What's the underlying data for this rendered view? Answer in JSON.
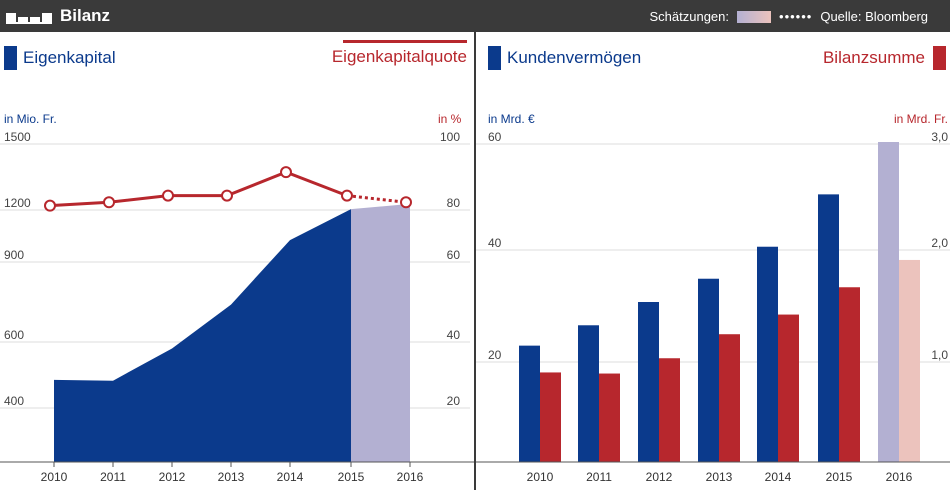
{
  "header": {
    "title": "Bilanz",
    "estimates_label": "Schätzungen:",
    "estimates_dots": "••••••",
    "source": "Quelle: Bloomberg"
  },
  "colors": {
    "navy": "#0b3a8c",
    "red": "#b7272d",
    "lavender": "#b3b0d2",
    "pink": "#ecc3bd",
    "grid": "#dddddd"
  },
  "chart_data": [
    {
      "type": "area",
      "legend_left": "Eigenkapital",
      "legend_right": "Eigenkapitalquote",
      "unit_left": "in Mio. Fr.",
      "unit_right": "in %",
      "categories": [
        "2010",
        "2011",
        "2012",
        "2013",
        "2014",
        "2015",
        "2016"
      ],
      "left_ticks": [
        "1500",
        "1200",
        "900",
        "600",
        "400"
      ],
      "right_ticks": [
        "100",
        "80",
        "60",
        "40",
        "20"
      ],
      "series": [
        {
          "name": "Eigenkapital",
          "axis": "left",
          "type": "area",
          "values": [
            578,
            575,
            700,
            870,
            1120,
            1240,
            1260
          ],
          "estimated_from": 2016
        },
        {
          "name": "Eigenkapitalquote",
          "axis": "right",
          "type": "line",
          "values": [
            81,
            82,
            84,
            84,
            91,
            84,
            82
          ],
          "estimated_from": 2016
        }
      ]
    },
    {
      "type": "bar",
      "legend_left": "Kundenvermögen",
      "legend_right": "Bilanzsumme",
      "unit_left": "in Mrd. €",
      "unit_right": "in Mrd. Fr.",
      "categories": [
        "2010",
        "2011",
        "2012",
        "2013",
        "2014",
        "2015",
        "2016"
      ],
      "left_ticks": [
        "60",
        "40",
        "20"
      ],
      "right_ticks": [
        "3,0",
        "2,0",
        "1,0"
      ],
      "series": [
        {
          "name": "Kundenvermögen",
          "axis": "left",
          "values": [
            21,
            24.5,
            28.5,
            32.5,
            38,
            47,
            56
          ],
          "estimated_from": 2016
        },
        {
          "name": "Bilanzsumme",
          "axis": "right",
          "values": [
            0.75,
            0.74,
            0.88,
            1.1,
            1.28,
            1.53,
            1.78
          ],
          "estimated_from": 2016
        }
      ]
    }
  ]
}
